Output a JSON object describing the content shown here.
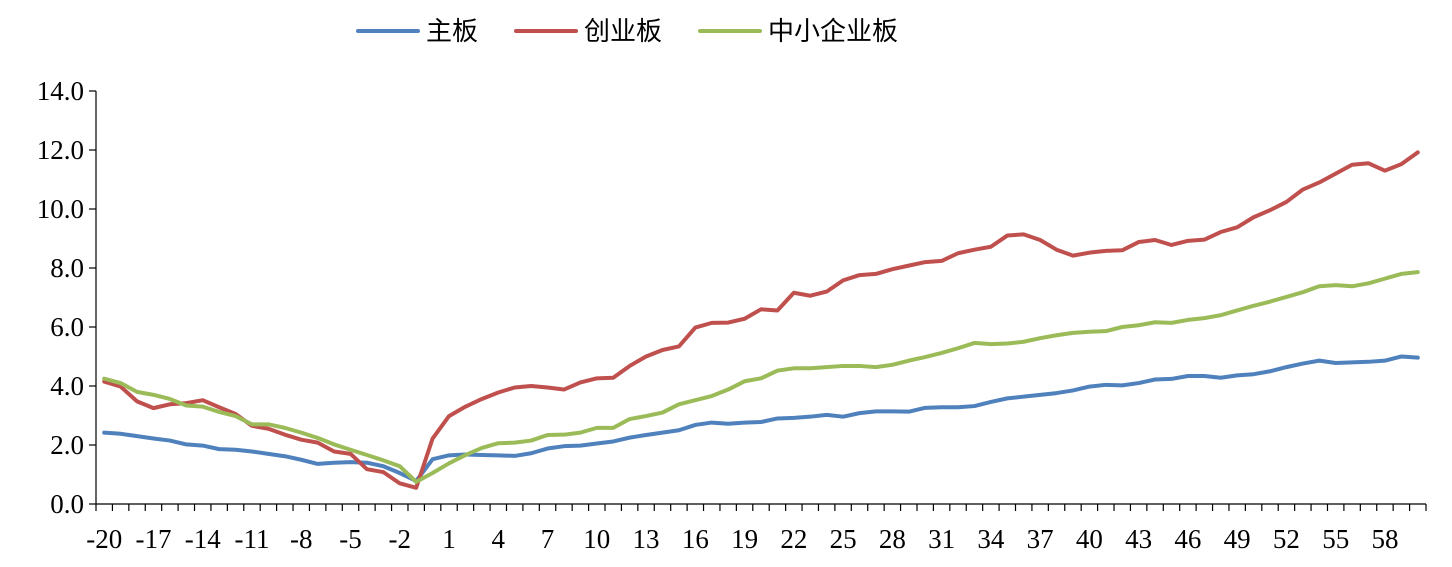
{
  "chart_data": {
    "type": "line",
    "title": "",
    "xlabel": "",
    "ylabel": "",
    "x_start": -20,
    "x_end": 60,
    "x_tick_values": [
      -20,
      -17,
      -14,
      -11,
      -8,
      -5,
      -2,
      1,
      4,
      7,
      10,
      13,
      16,
      19,
      22,
      25,
      28,
      31,
      34,
      37,
      40,
      43,
      46,
      49,
      52,
      55,
      58
    ],
    "x_tick_labels": [
      "-20",
      "-17",
      "-14",
      "-11",
      "-8",
      "-5",
      "-2",
      "1",
      "4",
      "7",
      "10",
      "13",
      "16",
      "19",
      "22",
      "25",
      "28",
      "31",
      "34",
      "37",
      "40",
      "43",
      "46",
      "49",
      "52",
      "55",
      "58"
    ],
    "ylim": [
      0,
      14
    ],
    "y_ticks": [
      0,
      2,
      4,
      6,
      8,
      10,
      12,
      14
    ],
    "y_tick_labels": [
      "0.0",
      "2.0",
      "4.0",
      "6.0",
      "8.0",
      "10.0",
      "12.0",
      "14.0"
    ],
    "grid": false,
    "legend_position": "top-center",
    "series": [
      {
        "name": "主板",
        "color": "#4F81BD",
        "values": [
          2.42,
          2.38,
          2.3,
          2.22,
          2.15,
          2.02,
          1.98,
          1.86,
          1.84,
          1.78,
          1.7,
          1.62,
          1.5,
          1.36,
          1.4,
          1.42,
          1.4,
          1.28,
          1.05,
          0.78,
          1.52,
          1.65,
          1.68,
          1.66,
          1.65,
          1.63,
          1.72,
          1.88,
          1.96,
          1.98,
          2.05,
          2.12,
          2.25,
          2.34,
          2.42,
          2.5,
          2.68,
          2.76,
          2.72,
          2.76,
          2.78,
          2.9,
          2.92,
          2.96,
          3.02,
          2.96,
          3.08,
          3.14,
          3.14,
          3.13,
          3.26,
          3.28,
          3.28,
          3.32,
          3.46,
          3.58,
          3.64,
          3.7,
          3.76,
          3.85,
          3.98,
          4.04,
          4.02,
          4.1,
          4.22,
          4.24,
          4.34,
          4.34,
          4.28,
          4.36,
          4.4,
          4.5,
          4.64,
          4.76,
          4.86,
          4.78,
          4.8,
          4.82,
          4.86,
          5.0,
          4.96
        ]
      },
      {
        "name": "创业板",
        "color": "#C0504D",
        "values": [
          4.15,
          3.98,
          3.48,
          3.25,
          3.38,
          3.42,
          3.52,
          3.28,
          3.05,
          2.65,
          2.55,
          2.35,
          2.18,
          2.08,
          1.78,
          1.7,
          1.18,
          1.08,
          0.7,
          0.55,
          2.22,
          2.98,
          3.3,
          3.56,
          3.78,
          3.95,
          4.0,
          3.95,
          3.88,
          4.12,
          4.26,
          4.28,
          4.68,
          5.0,
          5.22,
          5.34,
          5.98,
          6.14,
          6.15,
          6.28,
          6.6,
          6.56,
          7.16,
          7.06,
          7.2,
          7.58,
          7.76,
          7.8,
          7.96,
          8.08,
          8.2,
          8.24,
          8.5,
          8.62,
          8.72,
          9.1,
          9.14,
          8.95,
          8.62,
          8.42,
          8.52,
          8.58,
          8.6,
          8.88,
          8.95,
          8.78,
          8.92,
          8.96,
          9.22,
          9.38,
          9.72,
          9.96,
          10.24,
          10.66,
          10.9,
          11.2,
          11.5,
          11.55,
          11.3,
          11.52,
          11.92
        ]
      },
      {
        "name": "中小企业板",
        "color": "#9BBB59",
        "values": [
          4.25,
          4.1,
          3.8,
          3.7,
          3.56,
          3.34,
          3.3,
          3.12,
          2.98,
          2.7,
          2.7,
          2.58,
          2.42,
          2.24,
          2.02,
          1.84,
          1.66,
          1.48,
          1.28,
          0.75,
          1.05,
          1.38,
          1.66,
          1.9,
          2.06,
          2.08,
          2.15,
          2.34,
          2.35,
          2.42,
          2.58,
          2.58,
          2.88,
          2.98,
          3.1,
          3.38,
          3.52,
          3.66,
          3.88,
          4.16,
          4.26,
          4.52,
          4.6,
          4.6,
          4.64,
          4.68,
          4.68,
          4.64,
          4.72,
          4.86,
          4.98,
          5.12,
          5.28,
          5.46,
          5.42,
          5.44,
          5.5,
          5.62,
          5.72,
          5.8,
          5.84,
          5.86,
          6.0,
          6.06,
          6.16,
          6.14,
          6.24,
          6.3,
          6.4,
          6.56,
          6.72,
          6.86,
          7.02,
          7.18,
          7.38,
          7.42,
          7.38,
          7.48,
          7.64,
          7.8,
          7.86
        ]
      }
    ]
  }
}
